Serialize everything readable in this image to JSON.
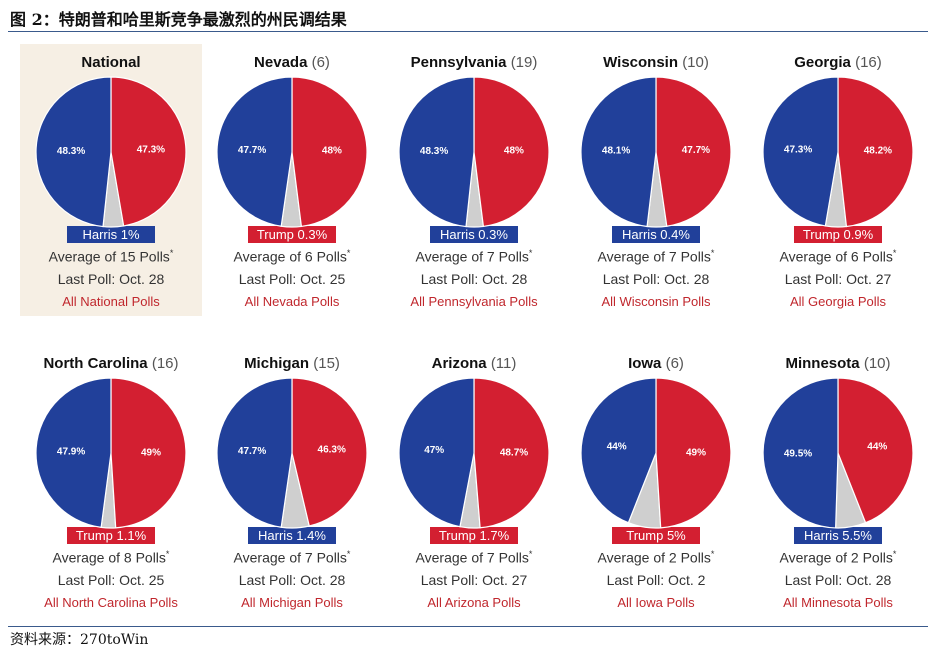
{
  "figure_title": "图 2：特朗普和哈里斯竞争最激烈的州民调结果",
  "source": "资料来源：270toWin",
  "colors": {
    "harris": "#21409a",
    "trump": "#d31f31",
    "undecided": "#cfcfcf",
    "panel_highlight": "#f6efe4"
  },
  "chart_data": [
    {
      "type": "pie",
      "title": "National",
      "ev": "",
      "harris_pct": 48.3,
      "trump_pct": 47.3,
      "harris_label": "48.3%",
      "trump_label": "47.3%",
      "leader": "harris",
      "margin": "Harris 1%",
      "avg": "Average of 15 Polls",
      "last": "Last Poll: Oct. 28",
      "link": "All National Polls"
    },
    {
      "type": "pie",
      "title": "Nevada",
      "ev": "(6)",
      "harris_pct": 47.7,
      "trump_pct": 48,
      "harris_label": "47.7%",
      "trump_label": "48%",
      "leader": "trump",
      "margin": "Trump 0.3%",
      "avg": "Average of 6 Polls",
      "last": "Last Poll: Oct. 25",
      "link": "All Nevada Polls"
    },
    {
      "type": "pie",
      "title": "Pennsylvania",
      "ev": "(19)",
      "harris_pct": 48.3,
      "trump_pct": 48,
      "harris_label": "48.3%",
      "trump_label": "48%",
      "leader": "harris",
      "margin": "Harris 0.3%",
      "avg": "Average of 7 Polls",
      "last": "Last Poll: Oct. 28",
      "link": "All Pennsylvania Polls"
    },
    {
      "type": "pie",
      "title": "Wisconsin",
      "ev": "(10)",
      "harris_pct": 48.1,
      "trump_pct": 47.7,
      "harris_label": "48.1%",
      "trump_label": "47.7%",
      "leader": "harris",
      "margin": "Harris 0.4%",
      "avg": "Average of 7 Polls",
      "last": "Last Poll: Oct. 28",
      "link": "All Wisconsin Polls"
    },
    {
      "type": "pie",
      "title": "Georgia",
      "ev": "(16)",
      "harris_pct": 47.3,
      "trump_pct": 48.2,
      "harris_label": "47.3%",
      "trump_label": "48.2%",
      "leader": "trump",
      "margin": "Trump 0.9%",
      "avg": "Average of 6 Polls",
      "last": "Last Poll: Oct. 27",
      "link": "All Georgia Polls"
    },
    {
      "type": "pie",
      "title": "North Carolina",
      "ev": "(16)",
      "harris_pct": 47.9,
      "trump_pct": 49,
      "harris_label": "47.9%",
      "trump_label": "49%",
      "leader": "trump",
      "margin": "Trump 1.1%",
      "avg": "Average of 8 Polls",
      "last": "Last Poll: Oct. 25",
      "link": "All North Carolina Polls"
    },
    {
      "type": "pie",
      "title": "Michigan",
      "ev": "(15)",
      "harris_pct": 47.7,
      "trump_pct": 46.3,
      "harris_label": "47.7%",
      "trump_label": "46.3%",
      "leader": "harris",
      "margin": "Harris 1.4%",
      "avg": "Average of 7 Polls",
      "last": "Last Poll: Oct. 28",
      "link": "All Michigan Polls"
    },
    {
      "type": "pie",
      "title": "Arizona",
      "ev": "(11)",
      "harris_pct": 47,
      "trump_pct": 48.7,
      "harris_label": "47%",
      "trump_label": "48.7%",
      "leader": "trump",
      "margin": "Trump 1.7%",
      "avg": "Average of 7 Polls",
      "last": "Last Poll: Oct. 27",
      "link": "All Arizona Polls"
    },
    {
      "type": "pie",
      "title": "Iowa",
      "ev": "(6)",
      "harris_pct": 44,
      "trump_pct": 49,
      "harris_label": "44%",
      "trump_label": "49%",
      "leader": "trump",
      "margin": "Trump 5%",
      "avg": "Average of 2 Polls",
      "last": "Last Poll: Oct. 2",
      "link": "All Iowa Polls"
    },
    {
      "type": "pie",
      "title": "Minnesota",
      "ev": "(10)",
      "harris_pct": 49.5,
      "trump_pct": 44,
      "harris_label": "49.5%",
      "trump_label": "44%",
      "leader": "harris",
      "margin": "Harris 5.5%",
      "avg": "Average of 2 Polls",
      "last": "Last Poll: Oct. 28",
      "link": "All Minnesota Polls"
    }
  ]
}
